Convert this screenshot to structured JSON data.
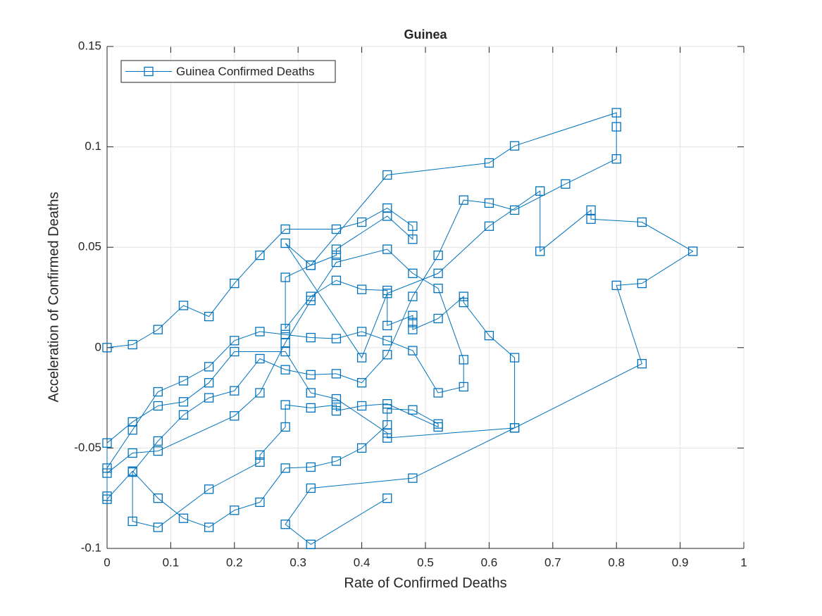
{
  "chart_data": {
    "type": "line",
    "title": "Guinea",
    "x_label": "Rate of Confirmed Deaths",
    "y_label": "Acceleration of Confirmed Deaths",
    "xlim": [
      0,
      1
    ],
    "ylim": [
      -0.1,
      0.15
    ],
    "xticks": [
      0,
      0.1,
      0.2,
      0.3,
      0.4,
      0.5,
      0.6,
      0.7,
      0.8,
      0.9,
      1
    ],
    "yticks": [
      -0.1,
      -0.05,
      0,
      0.05,
      0.1,
      0.15
    ],
    "grid": true,
    "legend": "northwest",
    "marker": "square",
    "series": [
      {
        "name": "Guinea Confirmed Deaths",
        "color": "#0072bd",
        "x": [
          0,
          0.04,
          0.08,
          0.12,
          0.16,
          0.2,
          0.24,
          0.28,
          0.36,
          0.4,
          0.44,
          0.48,
          0.48,
          0.44,
          0.36,
          0.36,
          0.32,
          0.28,
          0.28,
          0.32,
          0.36,
          0.4,
          0.44,
          0.44,
          0.48,
          0.48,
          0.48,
          0.52,
          0.56,
          0.56,
          0.6,
          0.64,
          0.64,
          0.44,
          0.44,
          0.36,
          0.32,
          0.28,
          0.2,
          0.16,
          0.12,
          0.08,
          0.04,
          0,
          0,
          0.04,
          0.08,
          0.12,
          0.16,
          0.2,
          0.24,
          0.28,
          0.32,
          0.36,
          0.4,
          0.44,
          0.48,
          0.52,
          0.56,
          0.56,
          0.52,
          0.48,
          0.44,
          0.36,
          0.32,
          0.28,
          0.24,
          0.2,
          0.08,
          0.04,
          0,
          0,
          0,
          0.04,
          0.08,
          0.12,
          0.16,
          0.2,
          0.24,
          0.28,
          0.32,
          0.36,
          0.4,
          0.44,
          0.44,
          0.48,
          0.52,
          0.52,
          0.44,
          0.4,
          0.36,
          0.36,
          0.32,
          0.28,
          0.28,
          0.24,
          0.24,
          0.16,
          0.08,
          0.04,
          0.04,
          0.08,
          0.12,
          0.16,
          0.2,
          0.24,
          0.28,
          0.32,
          0.36,
          0.4,
          0.44,
          0.48,
          0.52,
          0.56,
          0.6,
          0.64,
          0.72,
          0.8,
          0.8,
          0.8,
          0.64,
          0.6,
          0.44,
          0.32,
          0.28,
          0.4,
          0.44,
          0.52,
          0.6,
          0.68,
          0.68,
          0.76,
          0.76,
          0.84,
          0.92,
          0.84,
          0.8,
          0.84,
          0.64,
          0.48,
          0.32,
          0.28,
          0.32,
          0.44
        ],
        "values": [
          0,
          0.0015,
          0.009,
          0.021,
          0.0155,
          0.032,
          0.046,
          0.059,
          0.059,
          0.0625,
          0.0695,
          0.0605,
          0.054,
          0.0655,
          0.049,
          0.046,
          0.041,
          0.035,
          0.0095,
          0.0255,
          0.0335,
          0.029,
          0.0285,
          0.011,
          0.016,
          0.0125,
          0.009,
          0.0145,
          0.0255,
          0.0225,
          0.006,
          -0.005,
          -0.04,
          -0.045,
          -0.0425,
          -0.0255,
          -0.0225,
          -0.002,
          -0.002,
          -0.0175,
          -0.027,
          -0.029,
          -0.037,
          -0.0475,
          -0.06,
          -0.041,
          -0.022,
          -0.0165,
          -0.0095,
          0.0035,
          0.008,
          0.0065,
          0.005,
          0.0045,
          0.008,
          0.0035,
          -0.0015,
          -0.0225,
          -0.0195,
          -0.006,
          0.0295,
          0.037,
          0.049,
          0.0425,
          0.0235,
          0.0025,
          -0.0225,
          -0.034,
          -0.0515,
          -0.0525,
          -0.0625,
          -0.074,
          -0.0755,
          -0.0615,
          -0.075,
          -0.085,
          -0.0895,
          -0.081,
          -0.077,
          -0.06,
          -0.0595,
          -0.0565,
          -0.05,
          -0.0385,
          -0.0305,
          -0.031,
          -0.038,
          -0.0395,
          -0.028,
          -0.029,
          -0.0315,
          -0.0285,
          -0.03,
          -0.0285,
          -0.0395,
          -0.0535,
          -0.057,
          -0.0705,
          -0.0895,
          -0.0865,
          -0.062,
          -0.0465,
          -0.0335,
          -0.025,
          -0.0215,
          -0.0055,
          -0.011,
          -0.0135,
          -0.013,
          -0.0175,
          -0.0035,
          0.0255,
          0.046,
          0.0735,
          0.072,
          0.0685,
          0.0815,
          0.094,
          0.11,
          0.117,
          0.1005,
          0.092,
          0.086,
          0.041,
          0.052,
          -0.005,
          0.027,
          0.037,
          0.0605,
          0.078,
          0.048,
          0.0685,
          0.064,
          0.0625,
          0.048,
          0.032,
          0.031,
          -0.008,
          -0.04,
          -0.065,
          -0.07,
          -0.088,
          -0.098,
          -0.075
        ]
      }
    ]
  }
}
